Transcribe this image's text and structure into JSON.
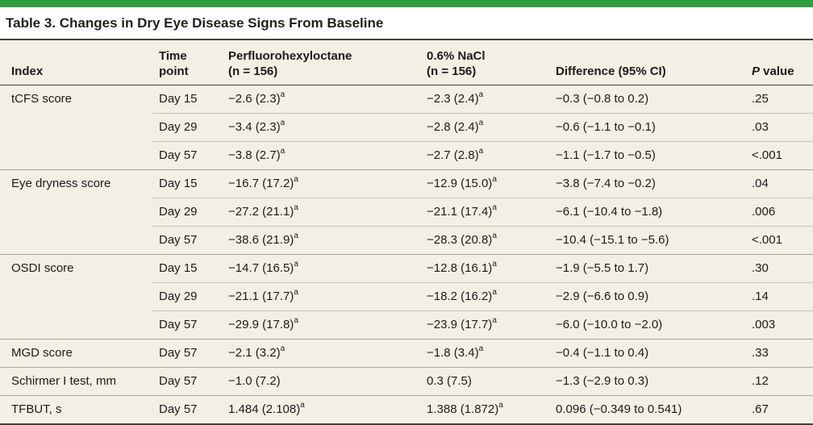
{
  "accent_color": "#2f9e41",
  "table_bg": "#f2efe4",
  "title": "Table 3. Changes in Dry Eye Disease Signs From Baseline",
  "columns": {
    "index": "Index",
    "time_line1": "Time",
    "time_line2": "point",
    "drug_line1": "Perfluorohexyloctane",
    "drug_line2": "(n = 156)",
    "control_line1": "0.6% NaCl",
    "control_line2": "(n = 156)",
    "difference": "Difference (95% CI)",
    "p_italic": "P",
    "p_rest": " value"
  },
  "rows": [
    {
      "index": "tCFS score",
      "time": "Day 15",
      "drug": "−2.6 (2.3)",
      "drug_sup": "a",
      "control": "−2.3 (2.4)",
      "control_sup": "a",
      "diff": "−0.3 (−0.8 to 0.2)",
      "p": ".25"
    },
    {
      "index": "",
      "time": "Day 29",
      "drug": "−3.4 (2.3)",
      "drug_sup": "a",
      "control": "−2.8 (2.4)",
      "control_sup": "a",
      "diff": "−0.6 (−1.1 to −0.1)",
      "p": ".03"
    },
    {
      "index": "",
      "time": "Day 57",
      "drug": "−3.8 (2.7)",
      "drug_sup": "a",
      "control": "−2.7 (2.8)",
      "control_sup": "a",
      "diff": "−1.1 (−1.7 to −0.5)",
      "p": "<.001"
    },
    {
      "index": "Eye dryness score",
      "time": "Day 15",
      "drug": "−16.7 (17.2)",
      "drug_sup": "a",
      "control": "−12.9 (15.0)",
      "control_sup": "a",
      "diff": "−3.8 (−7.4 to −0.2)",
      "p": ".04"
    },
    {
      "index": "",
      "time": "Day 29",
      "drug": "−27.2 (21.1)",
      "drug_sup": "a",
      "control": "−21.1 (17.4)",
      "control_sup": "a",
      "diff": "−6.1 (−10.4 to −1.8)",
      "p": ".006"
    },
    {
      "index": "",
      "time": "Day 57",
      "drug": "−38.6 (21.9)",
      "drug_sup": "a",
      "control": "−28.3 (20.8)",
      "control_sup": "a",
      "diff": "−10.4 (−15.1 to −5.6)",
      "p": "<.001"
    },
    {
      "index": "OSDI score",
      "time": "Day 15",
      "drug": "−14.7 (16.5)",
      "drug_sup": "a",
      "control": "−12.8 (16.1)",
      "control_sup": "a",
      "diff": "−1.9 (−5.5 to 1.7)",
      "p": ".30"
    },
    {
      "index": "",
      "time": "Day 29",
      "drug": "−21.1 (17.7)",
      "drug_sup": "a",
      "control": "−18.2 (16.2)",
      "control_sup": "a",
      "diff": "−2.9 (−6.6 to 0.9)",
      "p": ".14"
    },
    {
      "index": "",
      "time": "Day 57",
      "drug": "−29.9 (17.8)",
      "drug_sup": "a",
      "control": "−23.9 (17.7)",
      "control_sup": "a",
      "diff": "−6.0 (−10.0 to −2.0)",
      "p": ".003"
    },
    {
      "index": "MGD score",
      "time": "Day 57",
      "drug": "−2.1 (3.2)",
      "drug_sup": "a",
      "control": "−1.8 (3.4)",
      "control_sup": "a",
      "diff": "−0.4 (−1.1 to 0.4)",
      "p": ".33"
    },
    {
      "index": "Schirmer I test, mm",
      "time": "Day 57",
      "drug": "−1.0 (7.2)",
      "drug_sup": "",
      "control": "0.3 (7.5)",
      "control_sup": "",
      "diff": "−1.3 (−2.9 to 0.3)",
      "p": ".12"
    },
    {
      "index": "TFBUT, s",
      "time": "Day 57",
      "drug": "1.484 (2.108)",
      "drug_sup": "a",
      "control": "1.388 (1.872)",
      "control_sup": "a",
      "diff": "0.096 (−0.349 to 0.541)",
      "p": ".67"
    }
  ]
}
